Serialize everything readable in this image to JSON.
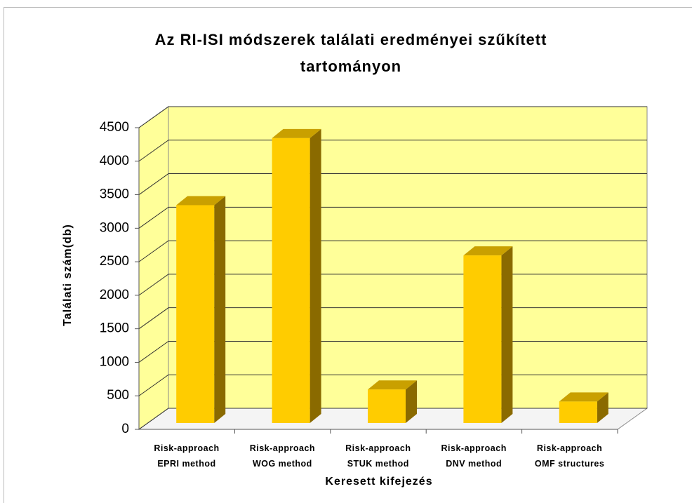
{
  "chart_data": {
    "type": "bar3d",
    "title": "Az RI-ISI módszerek találati eredményei szűkített tartományon",
    "x_label": "Keresett kifejezés",
    "y_label": "Találati szám(db)",
    "categories": [
      "Risk-approach\nEPRI method",
      "Risk-approach\nWOG method",
      "Risk-approach\nSTUK method",
      "Risk-approach\nDNV method",
      "Risk-approach\nOMF structures"
    ],
    "values": [
      3250,
      4250,
      500,
      2500,
      320
    ],
    "color": "#ffcc00",
    "wall_color": "#ffff99",
    "ylim": [
      0,
      4500
    ],
    "yticks": [
      0,
      500,
      1000,
      1500,
      2000,
      2500,
      3000,
      3500,
      4000,
      4500
    ],
    "grid": true
  }
}
